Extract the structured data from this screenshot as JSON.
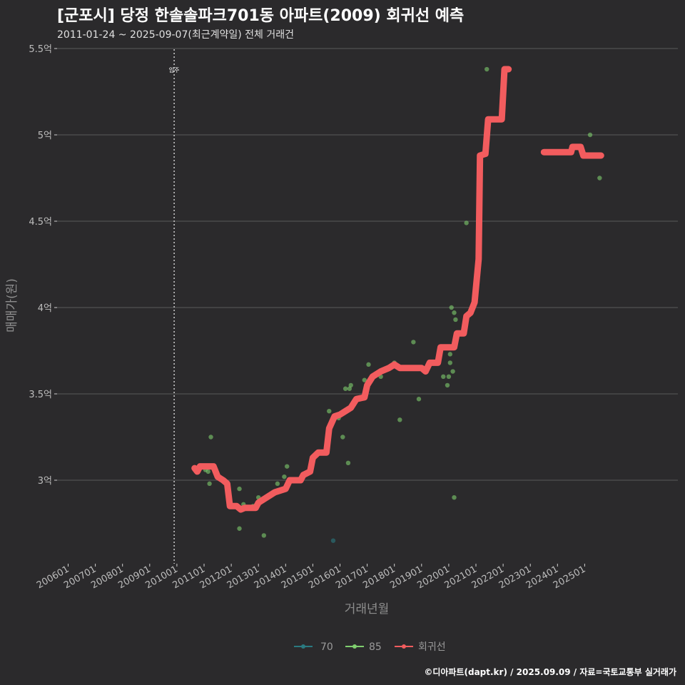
{
  "header": {
    "title": "[군포시] 당정 한솔솔파크701동 아파트(2009) 회귀선 예측",
    "subtitle": "2011-01-24 ~ 2025-09-07(최근계약일) 전체 거래건"
  },
  "footer": {
    "credit": "©디아파트(dapt.kr) / 2025.09.09 / 자료=국토교통부 실거래가"
  },
  "colors": {
    "background": "#2b2a2c",
    "grid": "#5a5a5a",
    "regression": "#f25c5e",
    "s70": "#2a7a80",
    "s85": "#7fcf6e"
  },
  "chart_data": {
    "type": "scatter",
    "title": "[군포시] 당정 한솔솔파크701동 아파트(2009) 회귀선 예측",
    "xlabel": "거래년월",
    "ylabel": "매매가(원)",
    "xlim": [
      2006.0,
      2026.0
    ],
    "ylim": [
      2.55,
      5.55
    ],
    "x_ticks": [
      {
        "v": 2006.0,
        "label": "200601"
      },
      {
        "v": 2007.0,
        "label": "200701"
      },
      {
        "v": 2008.0,
        "label": "200801"
      },
      {
        "v": 2009.0,
        "label": "200901"
      },
      {
        "v": 2010.0,
        "label": "201001"
      },
      {
        "v": 2011.0,
        "label": "201101"
      },
      {
        "v": 2012.0,
        "label": "201201"
      },
      {
        "v": 2013.0,
        "label": "201301"
      },
      {
        "v": 2014.0,
        "label": "201401"
      },
      {
        "v": 2015.0,
        "label": "201501"
      },
      {
        "v": 2016.0,
        "label": "201601"
      },
      {
        "v": 2017.0,
        "label": "201701"
      },
      {
        "v": 2018.0,
        "label": "201801"
      },
      {
        "v": 2019.0,
        "label": "201901"
      },
      {
        "v": 2020.0,
        "label": "202001"
      },
      {
        "v": 2021.0,
        "label": "202101"
      },
      {
        "v": 2022.0,
        "label": "202201"
      },
      {
        "v": 2023.0,
        "label": "202301"
      },
      {
        "v": 2024.0,
        "label": "202401"
      },
      {
        "v": 2025.0,
        "label": "202501"
      }
    ],
    "y_ticks": [
      {
        "v": 3.0,
        "label": "3억"
      },
      {
        "v": 3.5,
        "label": "3.5억"
      },
      {
        "v": 4.0,
        "label": "4억"
      },
      {
        "v": 4.5,
        "label": "4.5억"
      },
      {
        "v": 5.0,
        "label": "5억"
      },
      {
        "v": 5.5,
        "label": "5.5억"
      }
    ],
    "annotation": {
      "x": 2009.9,
      "label": "입주"
    },
    "legend": {
      "position": "bottom",
      "items": [
        {
          "key": "s70",
          "label": "70"
        },
        {
          "key": "s85",
          "label": "85"
        },
        {
          "key": "regression",
          "label": "회귀선"
        }
      ]
    },
    "series": [
      {
        "name": "70",
        "type": "scatter",
        "points": [
          [
            2015.75,
            2.65
          ]
        ]
      },
      {
        "name": "85",
        "type": "scatter",
        "points": [
          [
            2011.05,
            3.06
          ],
          [
            2011.15,
            3.05
          ],
          [
            2011.2,
            2.98
          ],
          [
            2011.25,
            3.25
          ],
          [
            2012.3,
            2.95
          ],
          [
            2012.3,
            2.72
          ],
          [
            2012.45,
            2.86
          ],
          [
            2012.8,
            2.85
          ],
          [
            2013.0,
            2.9
          ],
          [
            2013.2,
            2.68
          ],
          [
            2013.7,
            2.98
          ],
          [
            2013.95,
            3.02
          ],
          [
            2014.05,
            3.08
          ],
          [
            2015.6,
            3.4
          ],
          [
            2015.95,
            3.36
          ],
          [
            2016.1,
            3.25
          ],
          [
            2016.2,
            3.53
          ],
          [
            2016.3,
            3.1
          ],
          [
            2016.35,
            3.53
          ],
          [
            2016.4,
            3.55
          ],
          [
            2016.8,
            3.48
          ],
          [
            2016.9,
            3.58
          ],
          [
            2017.05,
            3.67
          ],
          [
            2017.5,
            3.6
          ],
          [
            2017.8,
            3.65
          ],
          [
            2018.0,
            3.68
          ],
          [
            2018.2,
            3.35
          ],
          [
            2018.7,
            3.8
          ],
          [
            2018.9,
            3.47
          ],
          [
            2019.2,
            3.65
          ],
          [
            2019.8,
            3.6
          ],
          [
            2019.95,
            3.55
          ],
          [
            2020.0,
            3.6
          ],
          [
            2020.05,
            3.73
          ],
          [
            2020.05,
            3.68
          ],
          [
            2020.1,
            4.0
          ],
          [
            2020.15,
            3.63
          ],
          [
            2020.2,
            3.97
          ],
          [
            2020.25,
            3.93
          ],
          [
            2020.2,
            2.9
          ],
          [
            2020.65,
            4.49
          ],
          [
            2021.4,
            5.38
          ],
          [
            2025.2,
            5.0
          ],
          [
            2025.55,
            4.75
          ]
        ]
      },
      {
        "name": "회귀선",
        "type": "line",
        "segments": [
          [
            [
              2010.65,
              3.07
            ],
            [
              2010.75,
              3.05
            ],
            [
              2010.85,
              3.08
            ],
            [
              2011.35,
              3.08
            ],
            [
              2011.5,
              3.02
            ],
            [
              2011.7,
              3.0
            ],
            [
              2011.85,
              2.98
            ],
            [
              2011.95,
              2.85
            ],
            [
              2012.2,
              2.85
            ],
            [
              2012.35,
              2.83
            ],
            [
              2012.5,
              2.84
            ],
            [
              2012.9,
              2.84
            ],
            [
              2013.0,
              2.87
            ],
            [
              2013.3,
              2.9
            ],
            [
              2013.6,
              2.93
            ],
            [
              2014.0,
              2.95
            ],
            [
              2014.15,
              3.0
            ],
            [
              2014.55,
              3.0
            ],
            [
              2014.65,
              3.03
            ],
            [
              2014.9,
              3.05
            ],
            [
              2015.0,
              3.13
            ],
            [
              2015.2,
              3.16
            ],
            [
              2015.5,
              3.16
            ],
            [
              2015.6,
              3.3
            ],
            [
              2015.8,
              3.37
            ],
            [
              2016.0,
              3.38
            ],
            [
              2016.2,
              3.4
            ],
            [
              2016.4,
              3.42
            ],
            [
              2016.6,
              3.47
            ],
            [
              2016.9,
              3.48
            ],
            [
              2017.0,
              3.55
            ],
            [
              2017.2,
              3.6
            ],
            [
              2017.5,
              3.63
            ],
            [
              2017.8,
              3.65
            ],
            [
              2018.0,
              3.67
            ],
            [
              2018.2,
              3.65
            ],
            [
              2018.6,
              3.65
            ],
            [
              2019.0,
              3.65
            ],
            [
              2019.15,
              3.63
            ],
            [
              2019.3,
              3.68
            ],
            [
              2019.6,
              3.68
            ],
            [
              2019.7,
              3.77
            ],
            [
              2020.2,
              3.77
            ],
            [
              2020.3,
              3.85
            ],
            [
              2020.55,
              3.85
            ],
            [
              2020.65,
              3.95
            ],
            [
              2020.8,
              3.97
            ],
            [
              2020.95,
              4.03
            ],
            [
              2021.1,
              4.28
            ],
            [
              2021.15,
              4.88
            ],
            [
              2021.35,
              4.89
            ],
            [
              2021.45,
              5.09
            ],
            [
              2021.95,
              5.09
            ],
            [
              2022.05,
              5.38
            ],
            [
              2022.2,
              5.38
            ]
          ],
          [
            [
              2023.5,
              4.9
            ],
            [
              2024.5,
              4.9
            ],
            [
              2024.55,
              4.93
            ],
            [
              2024.85,
              4.93
            ],
            [
              2024.95,
              4.88
            ],
            [
              2025.6,
              4.88
            ]
          ]
        ]
      }
    ]
  }
}
